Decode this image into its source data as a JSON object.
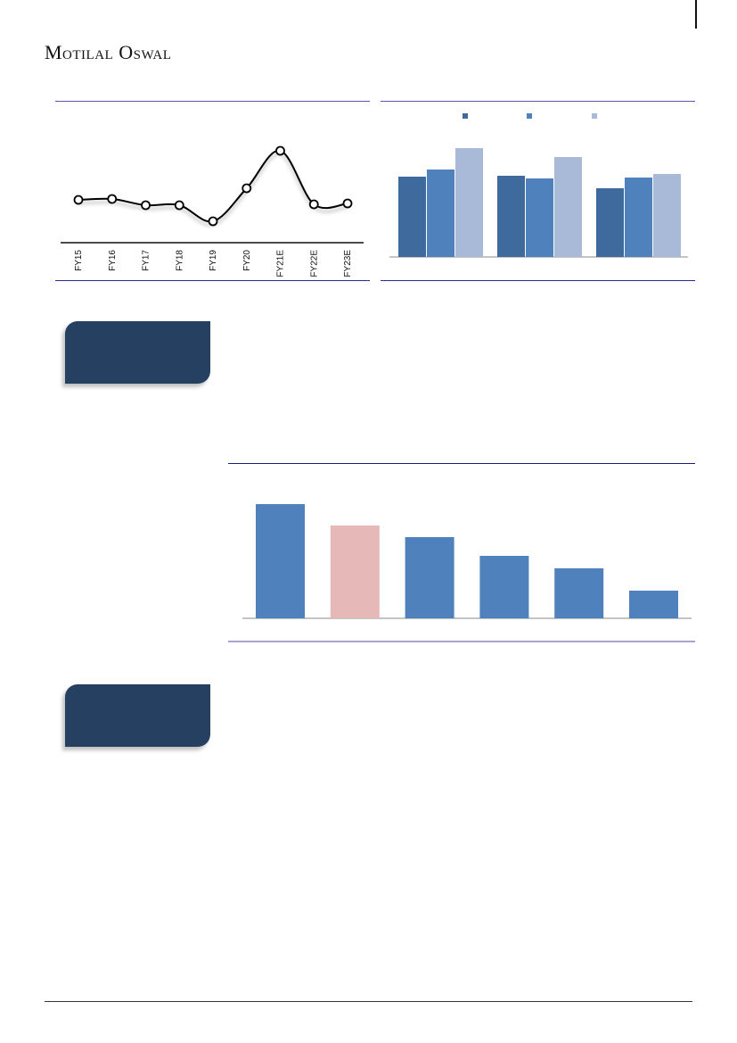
{
  "header": {
    "logo": "Motilal Oswal"
  },
  "colors": {
    "navy_box": "#264061",
    "bar_dark": "#3f6a9e",
    "bar_mid": "#4f81bd",
    "bar_light": "#a9bad8",
    "bar_highlight": "#e6b8b7",
    "rule_top": "#5b55b0",
    "rule_bottom": "#2a2a9a"
  },
  "chart_data": [
    {
      "type": "line",
      "categories": [
        "FY15",
        "FY16",
        "FY17",
        "FY18",
        "FY19",
        "FY20",
        "FY21E",
        "FY22E",
        "FY23E"
      ],
      "values": [
        48,
        49,
        42,
        42,
        24,
        61,
        103,
        43,
        44
      ],
      "smooth": true,
      "markers": "hollow-circle",
      "grid": false
    },
    {
      "type": "bar",
      "categories": [
        "",
        "",
        ""
      ],
      "series": [
        {
          "values": [
            90,
            91,
            77
          ],
          "color": "#3f6a9e"
        },
        {
          "values": [
            98,
            88,
            89
          ],
          "color": "#4f81bd"
        },
        {
          "values": [
            122,
            112,
            93
          ],
          "color": "#a9bad8"
        }
      ],
      "legend": "top",
      "grid": false
    },
    {
      "type": "bar",
      "categories": [
        "",
        "",
        "",
        "",
        "",
        ""
      ],
      "values": [
        128,
        104,
        91,
        70,
        56,
        31
      ],
      "colors": [
        "#4f81bd",
        "#e6b8b7",
        "#4f81bd",
        "#4f81bd",
        "#4f81bd",
        "#4f81bd"
      ],
      "grid": false
    }
  ]
}
